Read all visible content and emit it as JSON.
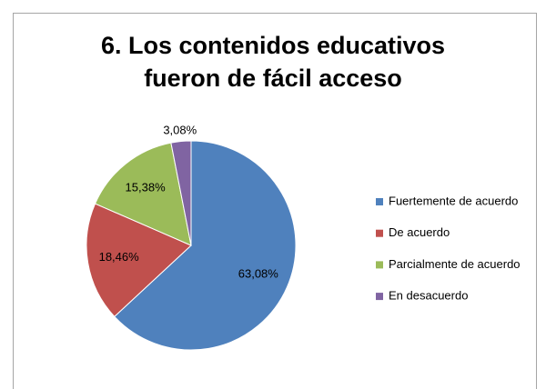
{
  "chart_data": {
    "type": "pie",
    "title": "6. Los contenidos educativos fueron de fácil acceso",
    "categories": [
      "Fuertemente de acuerdo",
      "De acuerdo",
      "Parcialmente de acuerdo",
      "En desacuerdo"
    ],
    "values": [
      63.08,
      18.46,
      15.38,
      3.08
    ],
    "value_labels": [
      "63,08%",
      "18,46%",
      "15,38%",
      "3,08%"
    ],
    "colors": [
      "#4f81bd",
      "#c0504d",
      "#9bbb59",
      "#8064a2"
    ],
    "legend": "right"
  }
}
